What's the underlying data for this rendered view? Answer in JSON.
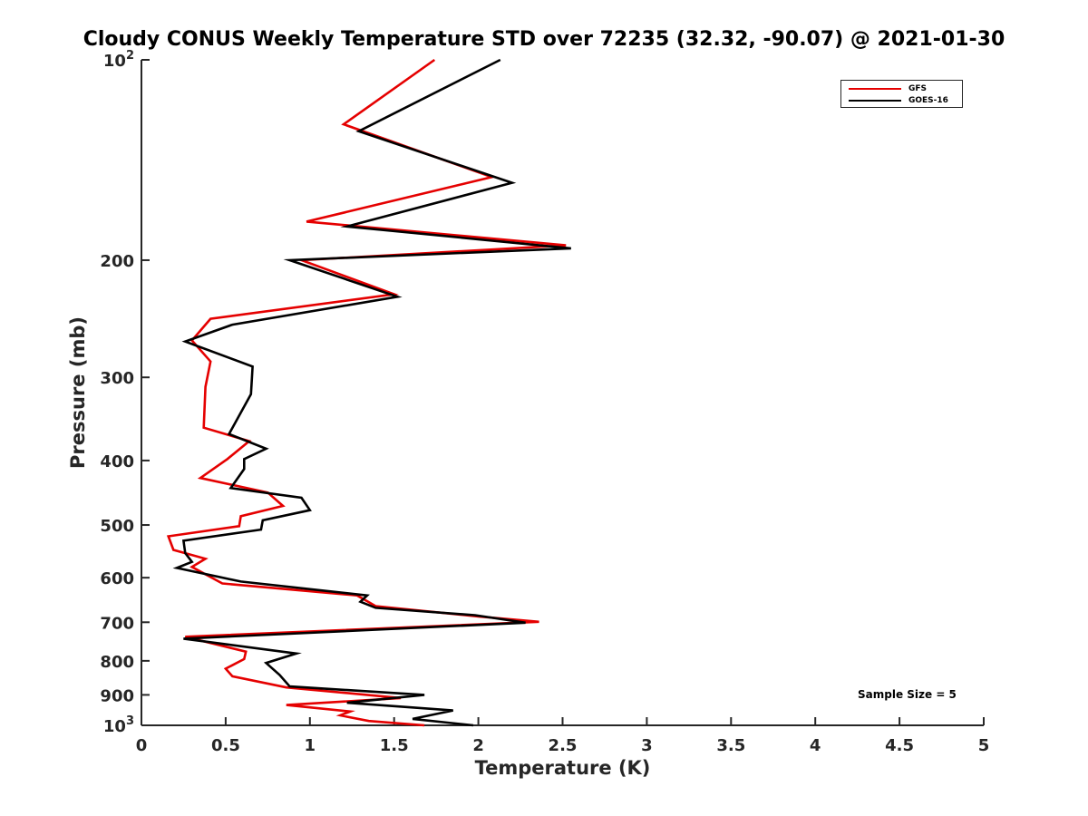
{
  "chart_data": {
    "type": "line",
    "title": "Cloudy CONUS Weekly Temperature STD over 72235 (32.32, -90.07) @ 2021-01-30",
    "xlabel": "Temperature (K)",
    "ylabel": "Pressure (mb)",
    "xlim": [
      0,
      5
    ],
    "ylim": [
      100,
      1000
    ],
    "yscale": "log",
    "y_reversed": true,
    "x_ticks": [
      0,
      0.5,
      1,
      1.5,
      2,
      2.5,
      3,
      3.5,
      4,
      4.5,
      5
    ],
    "x_tick_labels": [
      "0",
      "0.5",
      "1",
      "1.5",
      "2",
      "2.5",
      "3",
      "3.5",
      "4",
      "4.5",
      "5"
    ],
    "y_ticks": [
      100,
      200,
      300,
      400,
      500,
      600,
      700,
      800,
      900,
      1000
    ],
    "y_tick_labels": [
      "10^2",
      "200",
      "300",
      "400",
      "500",
      "600",
      "700",
      "800",
      "900",
      "10^3"
    ],
    "legend_position": "top-right",
    "annotation": "Sample Size = 5",
    "series": [
      {
        "name": "GFS",
        "color": "#e50000",
        "points": [
          [
            1.74,
            100
          ],
          [
            1.2,
            125
          ],
          [
            2.08,
            150
          ],
          [
            0.98,
            175
          ],
          [
            2.52,
            190
          ],
          [
            0.95,
            200
          ],
          [
            1.5,
            225
          ],
          [
            0.41,
            245
          ],
          [
            0.3,
            264
          ],
          [
            0.41,
            284
          ],
          [
            0.38,
            310
          ],
          [
            0.37,
            357
          ],
          [
            0.64,
            374
          ],
          [
            0.51,
            398
          ],
          [
            0.35,
            425
          ],
          [
            0.75,
            447
          ],
          [
            0.84,
            468
          ],
          [
            0.59,
            485
          ],
          [
            0.58,
            502
          ],
          [
            0.16,
            520
          ],
          [
            0.19,
            545
          ],
          [
            0.38,
            562
          ],
          [
            0.3,
            578
          ],
          [
            0.48,
            612
          ],
          [
            1.28,
            638
          ],
          [
            1.39,
            662
          ],
          [
            2.0,
            686
          ],
          [
            2.36,
            699
          ],
          [
            0.26,
            736
          ],
          [
            0.62,
            775
          ],
          [
            0.61,
            795
          ],
          [
            0.5,
            822
          ],
          [
            0.54,
            844
          ],
          [
            0.86,
            877
          ],
          [
            1.54,
            910
          ],
          [
            0.86,
            932
          ],
          [
            1.24,
            953
          ],
          [
            1.18,
            966
          ],
          [
            1.35,
            985
          ],
          [
            1.68,
            1000
          ]
        ]
      },
      {
        "name": "GOES-16",
        "color": "#000000",
        "points": [
          [
            2.13,
            100
          ],
          [
            1.29,
            128
          ],
          [
            2.2,
            153
          ],
          [
            1.22,
            178
          ],
          [
            2.55,
            192
          ],
          [
            0.88,
            200
          ],
          [
            1.52,
            227
          ],
          [
            0.54,
            250
          ],
          [
            0.26,
            265
          ],
          [
            0.66,
            289
          ],
          [
            0.65,
            318
          ],
          [
            0.52,
            365
          ],
          [
            0.74,
            384
          ],
          [
            0.61,
            398
          ],
          [
            0.61,
            412
          ],
          [
            0.53,
            440
          ],
          [
            0.95,
            455
          ],
          [
            1.0,
            475
          ],
          [
            0.72,
            492
          ],
          [
            0.71,
            508
          ],
          [
            0.25,
            528
          ],
          [
            0.26,
            551
          ],
          [
            0.3,
            568
          ],
          [
            0.21,
            580
          ],
          [
            0.59,
            608
          ],
          [
            1.34,
            638
          ],
          [
            1.3,
            652
          ],
          [
            1.39,
            666
          ],
          [
            1.98,
            683
          ],
          [
            2.28,
            701
          ],
          [
            0.25,
            741
          ],
          [
            0.92,
            780
          ],
          [
            0.74,
            806
          ],
          [
            0.82,
            840
          ],
          [
            0.88,
            874
          ],
          [
            1.68,
            900
          ],
          [
            1.22,
            925
          ],
          [
            1.85,
            950
          ],
          [
            1.61,
            978
          ],
          [
            1.97,
            1000
          ]
        ]
      }
    ]
  }
}
